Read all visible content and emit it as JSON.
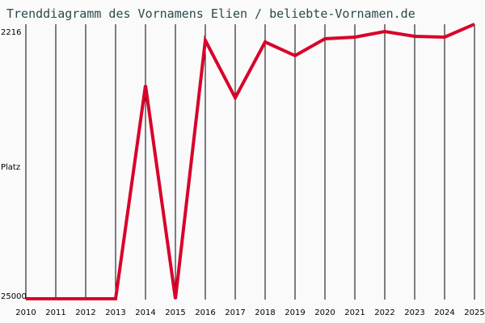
{
  "title": "Trenddiagramm des Vornamens Elien / beliebte-Vornamen.de",
  "chart_data": {
    "type": "line",
    "title": "Trenddiagramm des Vornamens Elien / beliebte-Vornamen.de",
    "xlabel": "",
    "ylabel": "Platz",
    "y_inverted": true,
    "yticks": [
      "2216",
      "25000"
    ],
    "ylim": [
      25000,
      2216
    ],
    "grid": "vertical",
    "categories": [
      "2010",
      "2011",
      "2012",
      "2013",
      "2014",
      "2015",
      "2016",
      "2017",
      "2018",
      "2019",
      "2020",
      "2021",
      "2022",
      "2023",
      "2024",
      "2025"
    ],
    "series": [
      {
        "name": "Elien",
        "color": "#d9002a",
        "values": [
          25000,
          25000,
          25000,
          25000,
          6700,
          25000,
          2840,
          7760,
          2980,
          4150,
          2700,
          2560,
          2080,
          2490,
          2560,
          1450
        ]
      }
    ]
  },
  "axis": {
    "y_top_label": "2216",
    "y_bottom_label": "25000",
    "y_title": "Platz"
  },
  "colors": {
    "line": "#d9002a",
    "title": "#2a4a4a",
    "background": "#fafafa"
  }
}
